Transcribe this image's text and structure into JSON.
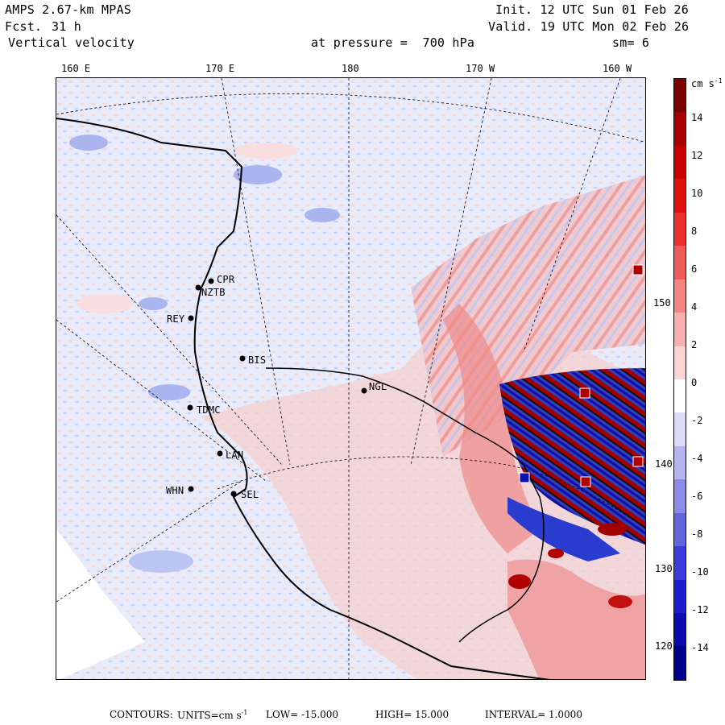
{
  "header": {
    "model": "AMPS 2.67-km MPAS",
    "fcst_label": "Fcst.",
    "fcst_value": "31 h",
    "field": "Vertical velocity",
    "init": "Init. 12 UTC Sun 01 Feb 26",
    "valid": "Valid. 19 UTC Mon 02 Feb 26",
    "pressure": "at pressure =  700 hPa",
    "smoothing": "sm= 6"
  },
  "longitudes": [
    "160 E",
    "170 E",
    "180",
    "170 W",
    "160 W"
  ],
  "latitudes": [
    "150 W",
    "140 W",
    "130 W",
    "120 W"
  ],
  "stations": [
    "CPR",
    "NZTB",
    "REY",
    "BIS",
    "NGL",
    "TDMC",
    "LAN",
    "WHN",
    "SEL"
  ],
  "colorbar": {
    "unit": "cm s",
    "unit_exp": "-1",
    "labels": [
      "14",
      "12",
      "10",
      "8",
      "6",
      "4",
      "2",
      "0",
      "-2",
      "-4",
      "-6",
      "-8",
      "-10",
      "-12",
      "-14"
    ],
    "colors": [
      "#7a0000",
      "#a80000",
      "#c80000",
      "#e01010",
      "#ec3030",
      "#f05a5a",
      "#f48484",
      "#f8b0b0",
      "#fbd4d4",
      "#ffffff",
      "#dcdcf8",
      "#b4b4f0",
      "#8c8ce8",
      "#6464e0",
      "#3c3cdc",
      "#1c1cd0",
      "#0a0ab0",
      "#00008a"
    ]
  },
  "footer": {
    "contours": "CONTOURS:",
    "units_label": "UNITS=cm s",
    "units_exp": "-1",
    "low": "LOW= -15.000",
    "high": "HIGH= 15.000",
    "interval": "INTERVAL=  1.0000"
  },
  "colors": {
    "positive": "#f4a6a6",
    "negative": "#8a9ae8",
    "background": "#e8ebfa"
  }
}
